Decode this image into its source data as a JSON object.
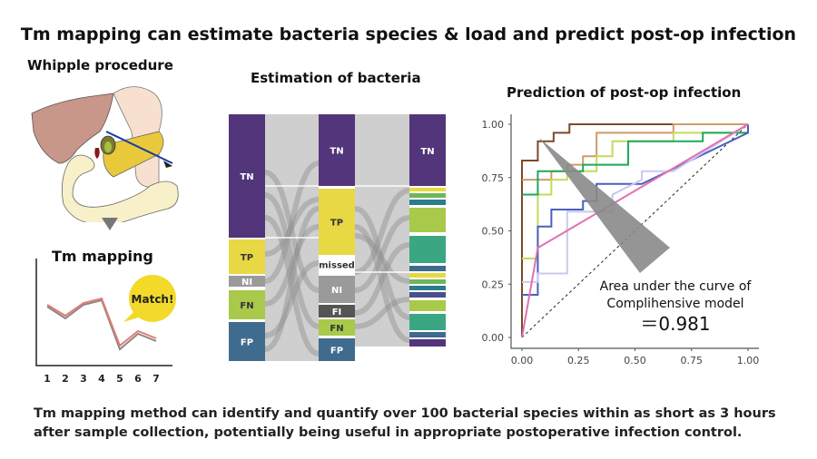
{
  "title": "Tm mapping can estimate bacteria species & load and predict post-op infection",
  "left": {
    "whipple_heading": "Whipple procedure",
    "tm_heading": "Tm mapping",
    "match_bubble": "Match!",
    "x_ticks": [
      "1",
      "2",
      "3",
      "4",
      "5",
      "6",
      "7"
    ]
  },
  "middle": {
    "heading": "Estimation of bacteria",
    "column1": [
      "TN",
      "TP",
      "NI",
      "FN",
      "FP"
    ],
    "column2": [
      "TN",
      "TP",
      "missed",
      "NI",
      "FI",
      "FN",
      "FP"
    ],
    "column3": [
      "TN"
    ],
    "colors": {
      "TN": "#52357a",
      "TP": "#e8d844",
      "NI": "#9a9a9a",
      "FN": "#a8c94a",
      "FP": "#3f6b8e",
      "FI": "#555555",
      "teal": "#3aa782"
    }
  },
  "right": {
    "heading": "Prediction of post-op infection",
    "annotation_line1": "Area under the curve of",
    "annotation_line2": "Complihensive model",
    "annotation_value": "＝0.981"
  },
  "chart_data": {
    "type": "line",
    "title": "",
    "xlabel": "",
    "ylabel": "",
    "xlim": [
      0,
      1
    ],
    "ylim": [
      0,
      1
    ],
    "x_ticks": [
      "0.00",
      "0.25",
      "0.50",
      "0.75",
      "1.00"
    ],
    "y_ticks": [
      "0.00",
      "0.25",
      "0.50",
      "0.75",
      "1.00"
    ],
    "grid": false,
    "reference_line": {
      "style": "dashed",
      "from": [
        0,
        0
      ],
      "to": [
        1,
        1
      ]
    },
    "series": [
      {
        "color": "#7a4a2a",
        "points": [
          [
            0,
            0
          ],
          [
            0,
            0.83
          ],
          [
            0.07,
            0.83
          ],
          [
            0.07,
            0.92
          ],
          [
            0.14,
            0.92
          ],
          [
            0.14,
            0.96
          ],
          [
            0.21,
            0.96
          ],
          [
            0.21,
            1
          ],
          [
            1,
            1
          ]
        ]
      },
      {
        "color": "#d09a6a",
        "points": [
          [
            0,
            0.74
          ],
          [
            0.13,
            0.74
          ],
          [
            0.13,
            0.78
          ],
          [
            0.2,
            0.78
          ],
          [
            0.2,
            0.81
          ],
          [
            0.27,
            0.81
          ],
          [
            0.27,
            0.85
          ],
          [
            0.33,
            0.85
          ],
          [
            0.33,
            0.96
          ],
          [
            0.67,
            0.96
          ],
          [
            0.67,
            1
          ],
          [
            1,
            1
          ]
        ]
      },
      {
        "color": "#c2dc5a",
        "points": [
          [
            0,
            0.37
          ],
          [
            0.07,
            0.37
          ],
          [
            0.07,
            0.67
          ],
          [
            0.13,
            0.67
          ],
          [
            0.13,
            0.74
          ],
          [
            0.2,
            0.74
          ],
          [
            0.2,
            0.78
          ],
          [
            0.33,
            0.78
          ],
          [
            0.33,
            0.85
          ],
          [
            0.4,
            0.85
          ],
          [
            0.4,
            0.92
          ],
          [
            0.67,
            0.92
          ],
          [
            0.67,
            0.96
          ],
          [
            1,
            0.96
          ]
        ]
      },
      {
        "color": "#1fa85a",
        "points": [
          [
            0,
            0.67
          ],
          [
            0.07,
            0.67
          ],
          [
            0.07,
            0.78
          ],
          [
            0.27,
            0.78
          ],
          [
            0.27,
            0.81
          ],
          [
            0.47,
            0.81
          ],
          [
            0.47,
            0.92
          ],
          [
            0.8,
            0.92
          ],
          [
            0.8,
            0.96
          ],
          [
            1,
            0.96
          ],
          [
            1,
            1
          ]
        ]
      },
      {
        "color": "#4a5fc0",
        "points": [
          [
            0,
            0.2
          ],
          [
            0.07,
            0.2
          ],
          [
            0.07,
            0.52
          ],
          [
            0.13,
            0.52
          ],
          [
            0.13,
            0.6
          ],
          [
            0.27,
            0.6
          ],
          [
            0.27,
            0.64
          ],
          [
            0.33,
            0.64
          ],
          [
            0.33,
            0.72
          ],
          [
            0.53,
            0.72
          ],
          [
            1,
            0.96
          ],
          [
            1,
            1
          ]
        ]
      },
      {
        "color": "#c9c9ee",
        "points": [
          [
            0,
            0.26
          ],
          [
            0.07,
            0.26
          ],
          [
            0.07,
            0.3
          ],
          [
            0.2,
            0.3
          ],
          [
            0.2,
            0.59
          ],
          [
            0.4,
            0.59
          ],
          [
            0.4,
            0.67
          ],
          [
            0.53,
            0.74
          ],
          [
            0.53,
            0.78
          ],
          [
            0.67,
            0.78
          ],
          [
            1,
            1
          ]
        ]
      },
      {
        "color": "#e070b0",
        "points": [
          [
            0,
            0
          ],
          [
            0.07,
            0.42
          ],
          [
            1,
            1
          ]
        ]
      }
    ]
  },
  "footer": {
    "line1": "Tm mapping method can identify and quantify over 100 bacterial species within as short as 3 hours",
    "line2": "after sample collection, potentially being useful in appropriate postoperative infection control."
  }
}
